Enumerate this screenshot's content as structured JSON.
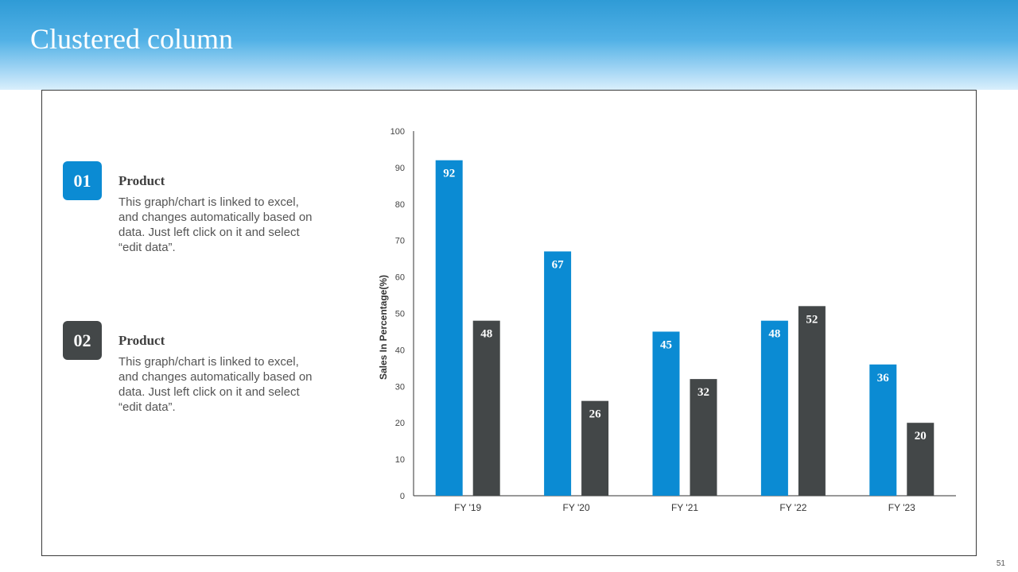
{
  "slide": {
    "title": "Clustered column",
    "page_number": "51"
  },
  "legend": [
    {
      "number": "01",
      "heading": "Product",
      "description": "This graph/chart is linked to excel, and changes automatically based on data. Just left click on it and select “edit data”.",
      "color": "#0b8bd3"
    },
    {
      "number": "02",
      "heading": "Product",
      "description": "This graph/chart is linked to excel, and changes automatically based on data. Just left click on it and select “edit data”.",
      "color": "#434748"
    }
  ],
  "chart_data": {
    "type": "bar",
    "categories": [
      "FY '19",
      "FY '20",
      "FY '21",
      "FY '22",
      "FY '23"
    ],
    "series": [
      {
        "values": [
          92,
          67,
          45,
          48,
          36
        ],
        "color": "#0b8bd3"
      },
      {
        "values": [
          48,
          26,
          32,
          52,
          20
        ],
        "color": "#434748"
      }
    ],
    "ylabel": "Sales In Percentage(%)",
    "ylim": [
      0,
      100
    ],
    "yticks": [
      0,
      10,
      20,
      30,
      40,
      50,
      60,
      70,
      80,
      90,
      100
    ],
    "grid": false,
    "data_labels": true
  }
}
